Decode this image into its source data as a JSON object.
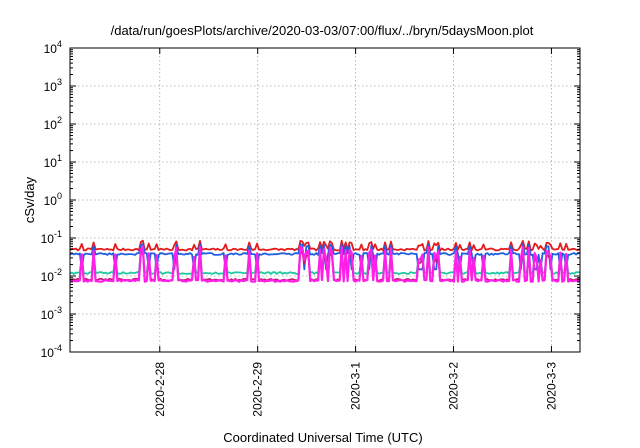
{
  "chart_data": {
    "type": "line",
    "title": "/data/run/goesPlots/archive/2020-03-03/07:00/flux/../bryn/5daysMoon.plot",
    "xlabel": "Coordinated Universal Time (UTC)",
    "ylabel": "cSv/day",
    "y_scale": "log",
    "ylim": [
      0.0001,
      10000
    ],
    "xlim": [
      "2020-02-27T02:00",
      "2020-03-03T07:00"
    ],
    "y_ticks": [
      {
        "value": 0.0001,
        "base": "10",
        "exp": "-4"
      },
      {
        "value": 0.001,
        "base": "10",
        "exp": "-3"
      },
      {
        "value": 0.01,
        "base": "10",
        "exp": "-2"
      },
      {
        "value": 0.1,
        "base": "10",
        "exp": "-1"
      },
      {
        "value": 1,
        "base": "10",
        "exp": "0"
      },
      {
        "value": 10,
        "base": "10",
        "exp": "1"
      },
      {
        "value": 100,
        "base": "10",
        "exp": "2"
      },
      {
        "value": 1000,
        "base": "10",
        "exp": "3"
      },
      {
        "value": 10000,
        "base": "10",
        "exp": "4"
      }
    ],
    "x_ticks": [
      {
        "value": "2020-02-28T00:00",
        "label": "2020-2-28"
      },
      {
        "value": "2020-02-29T00:00",
        "label": "2020-2-29"
      },
      {
        "value": "2020-03-01T00:00",
        "label": "2020-3-1"
      },
      {
        "value": "2020-03-02T00:00",
        "label": "2020-3-2"
      },
      {
        "value": "2020-03-03T00:00",
        "label": "2020-3-3"
      }
    ],
    "grid": true,
    "legend": "none",
    "series": [
      {
        "color": "#e41a1c",
        "base": 0.05,
        "dip_to": 0.04,
        "peak_to": 0.085
      },
      {
        "color": "#1f5fe0",
        "base": 0.038,
        "dip_to": 0.015,
        "peak_to": 0.07
      },
      {
        "color": "#1fc8a0",
        "base": 0.012,
        "dip_to": 0.008,
        "peak_to": 0.05
      },
      {
        "color": "#c0206a",
        "base": 0.008,
        "dip_to": 0.006,
        "peak_to": 0.045
      },
      {
        "color": "#ff1fe8",
        "base": 0.0075,
        "dip_to": 0.0062,
        "peak_to": 0.06
      }
    ]
  }
}
